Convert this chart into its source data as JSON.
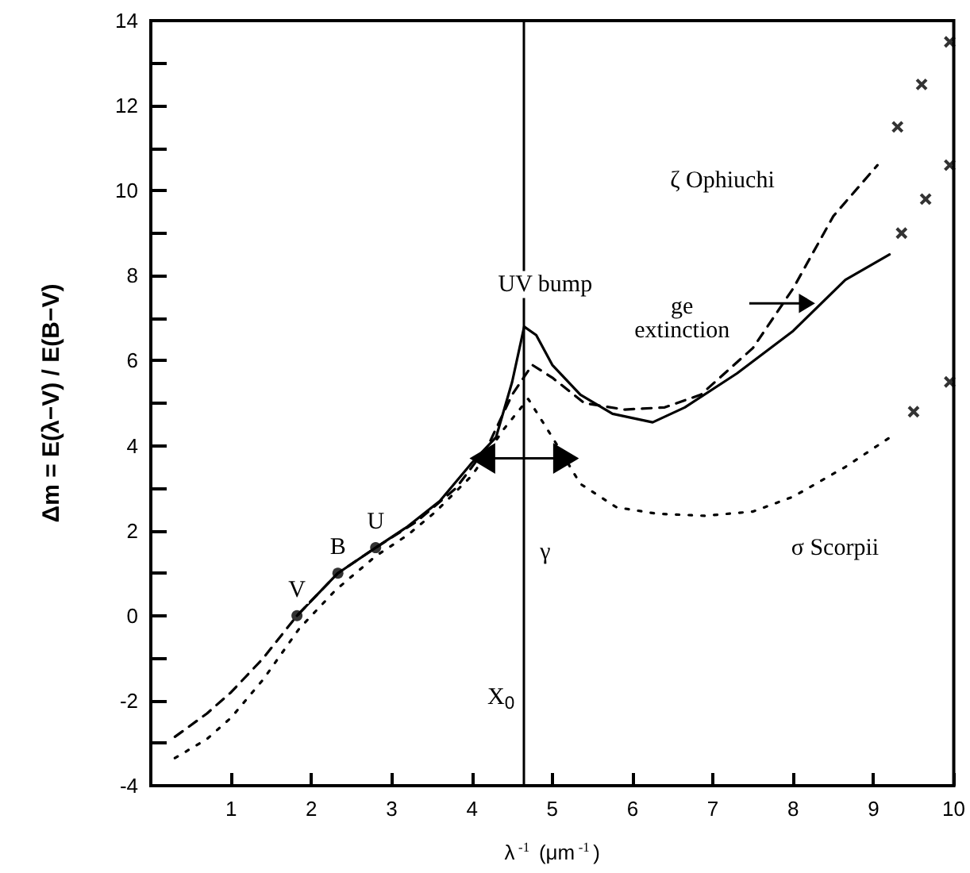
{
  "chart_data": {
    "type": "line",
    "xlabel": "λ$^{-1}$ (μm$^{-1}$)",
    "ylabel": "Δm = E(λ−V) / E(B−V)",
    "xlim": [
      0,
      10
    ],
    "xticks": [
      1,
      2,
      3,
      4,
      5,
      6,
      7,
      8,
      9,
      10
    ],
    "ylim": [
      -4,
      14
    ],
    "yticks": [
      -4,
      {
        "value": -3,
        "label": null
      },
      -2,
      {
        "value": -1,
        "label": null
      },
      0,
      {
        "value": 1,
        "label": null
      },
      2,
      {
        "value": 3,
        "label": null
      },
      4,
      {
        "value": 5,
        "label": null
      },
      6,
      {
        "value": 7,
        "label": null
      },
      8,
      {
        "value": 9,
        "label": null
      },
      10,
      {
        "value": 11,
        "label": null
      },
      12,
      {
        "value": 13,
        "label": null
      },
      14
    ],
    "grid": false,
    "series": [
      {
        "line_style": "solid",
        "color": "#000000",
        "x": [
          1.82,
          2.33,
          2.8,
          3.2,
          3.6,
          4.0,
          4.3,
          4.5,
          4.65,
          4.8,
          5.0,
          5.35,
          5.75,
          6.25,
          6.65,
          7.3,
          8.0,
          8.65,
          9.2
        ],
        "values": [
          0,
          1.0,
          1.6,
          2.1,
          2.7,
          3.6,
          4.2,
          5.5,
          6.8,
          6.6,
          5.9,
          5.2,
          4.75,
          4.55,
          4.9,
          5.7,
          6.7,
          7.9,
          8.5
        ]
      },
      {
        "type": "scatter",
        "marker": "cross",
        "color": "#000000",
        "x": [
          9.35,
          9.65,
          9.95
        ],
        "values": [
          9.0,
          9.8,
          10.6
        ]
      },
      {
        "type": "scatter",
        "marker": "circle",
        "color": "#000000",
        "x": [
          1.82,
          2.33,
          2.8
        ],
        "values": [
          0,
          1.0,
          1.6
        ]
      },
      {
        "line_style": "dashed",
        "color": "#000000",
        "x": [
          0.3,
          0.7,
          1.0,
          1.4,
          1.82,
          2.33,
          2.8,
          3.3,
          3.8,
          4.2,
          4.5,
          4.75,
          5.0,
          5.4,
          5.9,
          6.4,
          6.85,
          7.5,
          8.0,
          8.5,
          9.05
        ],
        "values": [
          -2.85,
          -2.3,
          -1.8,
          -1.0,
          0,
          1.0,
          1.6,
          2.2,
          3.0,
          4.0,
          5.2,
          5.9,
          5.6,
          5.0,
          4.85,
          4.9,
          5.2,
          6.3,
          7.7,
          9.4,
          10.6
        ]
      },
      {
        "type": "scatter",
        "marker": "cross",
        "color": "#000000",
        "x": [
          9.3,
          9.6,
          9.95
        ],
        "values": [
          11.5,
          12.5,
          13.5
        ]
      },
      {
        "line_style": "dotted",
        "color": "#000000",
        "x": [
          0.3,
          0.7,
          1.0,
          1.4,
          1.85,
          2.3,
          2.8,
          3.2,
          3.55,
          4.0,
          4.4,
          4.7,
          5.0,
          5.35,
          5.8,
          6.3,
          6.9,
          7.5,
          8.0,
          8.65,
          9.25
        ],
        "values": [
          -3.35,
          -2.9,
          -2.4,
          -1.5,
          -0.3,
          0.6,
          1.4,
          1.9,
          2.45,
          3.3,
          4.4,
          5.1,
          4.2,
          3.1,
          2.55,
          2.4,
          2.35,
          2.45,
          2.8,
          3.5,
          4.25
        ]
      },
      {
        "type": "scatter",
        "marker": "cross",
        "color": "#000000",
        "x": [
          9.5,
          9.95
        ],
        "values": [
          4.8,
          5.5
        ]
      }
    ],
    "ref_lines": [
      {
        "axis": "x",
        "value": 4.65,
        "color": "#000000",
        "line_style": "solid"
      }
    ],
    "annotations": [
      "UV bump",
      "γ",
      "X$_{0}$",
      {
        "text": "V",
        "x": 1.82,
        "y": 0
      },
      {
        "text": "B",
        "x": 2.33,
        "y": 1.0
      },
      {
        "text": "U",
        "x": 2.8,
        "y": 1.6
      },
      "ζ Ophiuchi",
      "ge\nextinction",
      "σ Scorpii"
    ]
  }
}
